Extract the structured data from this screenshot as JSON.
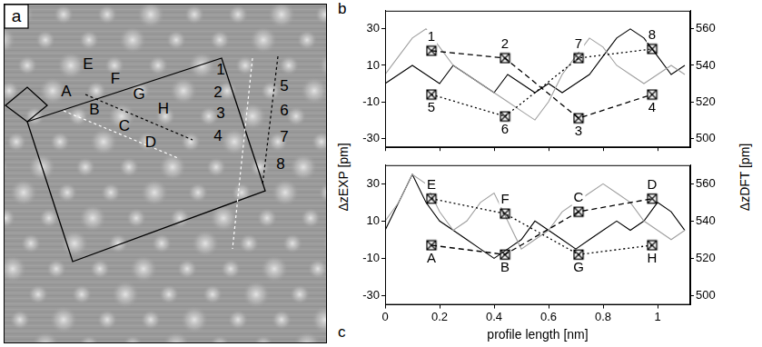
{
  "image": {
    "label": "a",
    "sites": [
      "A",
      "B",
      "C",
      "D",
      "E",
      "F",
      "G",
      "H",
      "1",
      "2",
      "3",
      "4",
      "5",
      "6",
      "7",
      "8"
    ]
  },
  "chart_data": [
    {
      "type": "line",
      "panel_label": "b",
      "xlim": [
        0,
        1.12
      ],
      "xticks": [
        0,
        0.2,
        0.4,
        0.6,
        0.8,
        1
      ],
      "ylim": [
        -35,
        40
      ],
      "yticks": [
        -30,
        -10,
        10,
        30
      ],
      "y2lim": [
        495,
        570
      ],
      "y2ticks": [
        500,
        520,
        540,
        560
      ],
      "tick_labels": "y",
      "grid": false,
      "series": [
        {
          "color": "#a0a0a0",
          "line_style": "solid",
          "marker": "none",
          "x": [
            0,
            0.05,
            0.1,
            0.15,
            0.2,
            0.25,
            0.3,
            0.35,
            0.4,
            0.45,
            0.5,
            0.55,
            0.6,
            0.65,
            0.7,
            0.75,
            0.8,
            0.85,
            0.9,
            0.95,
            1,
            1.05,
            1.1
          ],
          "values": [
            5,
            15,
            25,
            30,
            20,
            10,
            5,
            0,
            -5,
            -10,
            -15,
            -20,
            -10,
            5,
            15,
            25,
            20,
            10,
            5,
            0,
            5,
            10,
            5
          ]
        },
        {
          "color": "#000000",
          "line_style": "solid",
          "marker": "none",
          "x": [
            0,
            0.05,
            0.1,
            0.15,
            0.2,
            0.25,
            0.3,
            0.35,
            0.4,
            0.45,
            0.5,
            0.55,
            0.6,
            0.65,
            0.7,
            0.75,
            0.8,
            0.85,
            0.9,
            0.95,
            1,
            1.05,
            1.1
          ],
          "values": [
            0,
            5,
            10,
            5,
            0,
            10,
            5,
            0,
            -5,
            5,
            0,
            -5,
            0,
            -5,
            0,
            5,
            15,
            25,
            30,
            25,
            15,
            5,
            10
          ]
        },
        {
          "color": "#000000",
          "line_style": "dashed",
          "marker": "boxed-x",
          "axis": "y2",
          "x": [
            0.17,
            0.44,
            0.71,
            0.98
          ],
          "values": [
            548,
            544,
            511,
            524
          ],
          "point_labels": [
            "1",
            "2",
            "3",
            "4"
          ]
        },
        {
          "color": "#000000",
          "line_style": "dotted",
          "marker": "boxed-x",
          "axis": "y2",
          "x": [
            0.17,
            0.44,
            0.71,
            0.98
          ],
          "values": [
            524,
            512,
            544,
            549
          ],
          "point_labels": [
            "5",
            "6",
            "7",
            "8"
          ]
        }
      ]
    },
    {
      "type": "line",
      "panel_label": "c",
      "xlabel": "profile length [nm]",
      "ylabel": "ΔzEXP [pm]",
      "y2label": "ΔzDFT [pm]",
      "xlim": [
        0,
        1.12
      ],
      "xticks": [
        0,
        0.2,
        0.4,
        0.6,
        0.8,
        1
      ],
      "ylim": [
        -35,
        40
      ],
      "yticks": [
        -30,
        -10,
        10,
        30
      ],
      "y2lim": [
        495,
        570
      ],
      "y2ticks": [
        500,
        520,
        540,
        560
      ],
      "grid": false,
      "series": [
        {
          "color": "#a0a0a0",
          "line_style": "solid",
          "marker": "none",
          "x": [
            0,
            0.05,
            0.1,
            0.15,
            0.2,
            0.25,
            0.3,
            0.35,
            0.4,
            0.45,
            0.5,
            0.55,
            0.6,
            0.65,
            0.7,
            0.75,
            0.8,
            0.85,
            0.9,
            0.95,
            1,
            1.05,
            1.1
          ],
          "values": [
            10,
            20,
            35,
            30,
            15,
            5,
            10,
            20,
            25,
            10,
            -5,
            0,
            5,
            15,
            20,
            25,
            30,
            25,
            20,
            10,
            5,
            0,
            5
          ]
        },
        {
          "color": "#000000",
          "line_style": "solid",
          "marker": "none",
          "x": [
            0,
            0.05,
            0.1,
            0.15,
            0.2,
            0.25,
            0.3,
            0.35,
            0.4,
            0.45,
            0.5,
            0.55,
            0.6,
            0.65,
            0.7,
            0.75,
            0.8,
            0.85,
            0.9,
            0.95,
            1,
            1.05,
            1.1
          ],
          "values": [
            5,
            20,
            35,
            20,
            10,
            5,
            0,
            -5,
            -10,
            -5,
            0,
            10,
            5,
            0,
            -5,
            0,
            5,
            10,
            5,
            10,
            20,
            15,
            5
          ]
        },
        {
          "color": "#000000",
          "line_style": "dotted",
          "marker": "boxed-x",
          "axis": "y2",
          "x": [
            0.17,
            0.44,
            0.71,
            0.98
          ],
          "values": [
            552,
            544,
            522,
            527
          ],
          "point_labels": [
            "E",
            "F",
            "G",
            "H"
          ]
        },
        {
          "color": "#000000",
          "line_style": "dashed",
          "marker": "boxed-x",
          "axis": "y2",
          "x": [
            0.17,
            0.44,
            0.71,
            0.98
          ],
          "values": [
            527,
            522,
            545,
            552
          ],
          "point_labels": [
            "A",
            "B",
            "C",
            "D"
          ]
        }
      ]
    }
  ]
}
